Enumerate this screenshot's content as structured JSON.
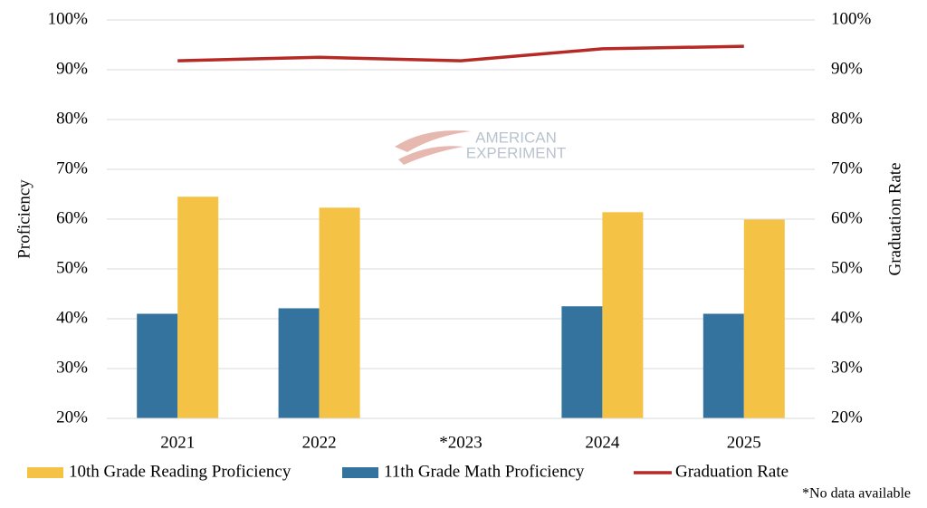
{
  "chart_data": {
    "type": "bar",
    "categories": [
      "2021",
      "2022",
      "*2023",
      "2024",
      "2025"
    ],
    "series": [
      {
        "name": "10th Grade Reading Proficiency",
        "color": "#f4c244",
        "values": [
          64.5,
          62.3,
          null,
          61.4,
          59.9
        ]
      },
      {
        "name": "11th Grade Math Proficiency",
        "color": "#33739d",
        "values": [
          41,
          42.1,
          null,
          42.5,
          41
        ]
      },
      {
        "name": "Graduation Rate",
        "color": "#b52a24",
        "type": "line",
        "axis": "y2",
        "values": [
          91.8,
          92.5,
          91.8,
          94.2,
          94.7
        ]
      }
    ],
    "bar_order": [
      1,
      0
    ],
    "y_label": "Proficiency",
    "y2_label": "Graduation Rate",
    "ylim": [
      20,
      100
    ],
    "yticks": [
      {
        "value": 20,
        "label": "20%"
      },
      {
        "value": 30,
        "label": "30%"
      },
      {
        "value": 40,
        "label": "40%"
      },
      {
        "value": 50,
        "label": "50%"
      },
      {
        "value": 60,
        "label": "60%"
      },
      {
        "value": 70,
        "label": "70%"
      },
      {
        "value": 80,
        "label": "80%"
      },
      {
        "value": 90,
        "label": "90%"
      },
      {
        "value": 100,
        "label": "100%"
      }
    ],
    "y2lim": [
      20,
      100
    ],
    "y2ticks": [
      {
        "value": 20,
        "label": "20%"
      },
      {
        "value": 30,
        "label": "30%"
      },
      {
        "value": 40,
        "label": "40%"
      },
      {
        "value": 50,
        "label": "50%"
      },
      {
        "value": 60,
        "label": "60%"
      },
      {
        "value": 70,
        "label": "70%"
      },
      {
        "value": 80,
        "label": "80%"
      },
      {
        "value": 90,
        "label": "90%"
      },
      {
        "value": 100,
        "label": "100%"
      }
    ],
    "grid": true,
    "legend": "bottom",
    "annotation": "*No data available",
    "watermark": [
      "AMERICAN",
      "EXPERIMENT"
    ]
  }
}
